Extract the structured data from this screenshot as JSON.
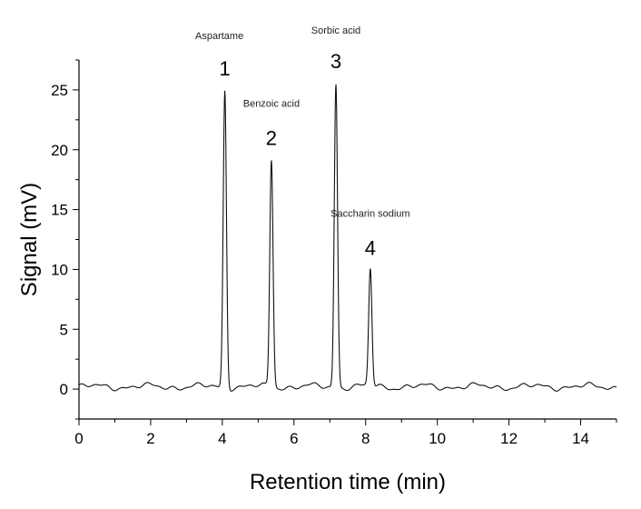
{
  "chart_data": {
    "type": "line",
    "title": "",
    "xlabel": "Retention time (min)",
    "ylabel": "Signal (mV)",
    "xlim": [
      0,
      15
    ],
    "ylim": [
      -2.5,
      27.5
    ],
    "x_ticks": [
      0,
      2,
      4,
      6,
      8,
      10,
      12,
      14
    ],
    "y_ticks": [
      0,
      5,
      10,
      15,
      20,
      25
    ],
    "grid": false,
    "baseline_mv": 0.2,
    "peaks": [
      {
        "number": "1",
        "name": "Aspartame",
        "retention_time": 4.07,
        "height": 25.0
      },
      {
        "number": "2",
        "name": "Benzoic acid",
        "retention_time": 5.37,
        "height": 19.2
      },
      {
        "number": "3",
        "name": "Sorbic acid",
        "retention_time": 7.17,
        "height": 25.6
      },
      {
        "number": "4",
        "name": "Saccharin sodium",
        "retention_time": 8.13,
        "height": 10.0
      }
    ]
  }
}
